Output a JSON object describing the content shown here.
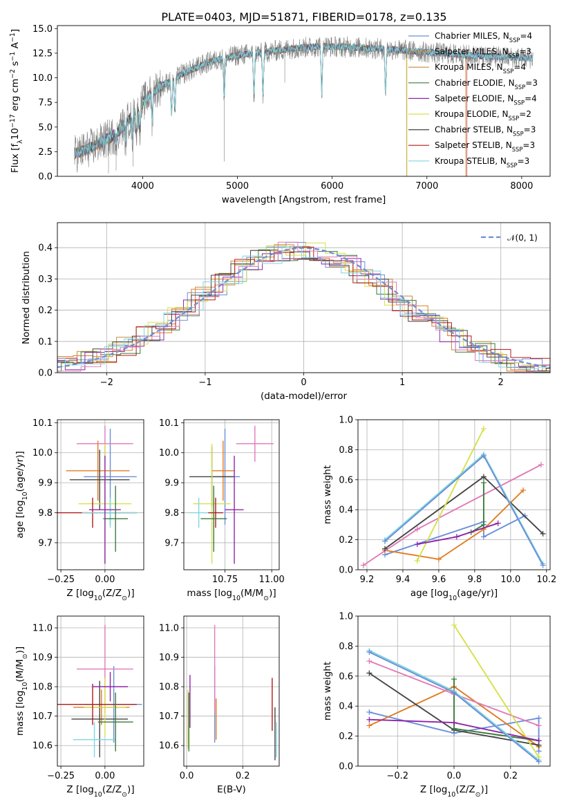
{
  "figure": {
    "title": "PLATE=0403, MJD=51871, FIBERID=0178, z=0.135"
  },
  "colors": {
    "chabrier_miles": "#6a8fd8",
    "salpeter_miles": "#e07b20",
    "kroupa_miles": "#c08a40",
    "chabrier_elodie": "#3a7a3a",
    "salpeter_elodie": "#8e24aa",
    "kroupa_elodie": "#d6e04a",
    "chabrier_stelib": "#444444",
    "salpeter_stelib": "#b01818",
    "kroupa_stelib": "#7fd6e0",
    "spectrum_data": "#808080",
    "pink": "#e07ab8",
    "normal_curve": "#6a8fd8"
  },
  "chart_data": [
    {
      "id": "spectrum",
      "type": "line",
      "title": "PLATE=0403, MJD=51871, FIBERID=0178, z=0.135",
      "xlabel": "wavelength [Angstrom, rest frame]",
      "ylabel": "Flux [f_λ 10^-17 erg cm^-2 s^-1 A^-1]",
      "xlim": [
        3100,
        8300
      ],
      "ylim": [
        0,
        15.3
      ],
      "xticks": [
        4000,
        5000,
        6000,
        7000,
        8000
      ],
      "yticks": [
        0.0,
        2.5,
        5.0,
        7.5,
        10.0,
        12.5,
        15.0
      ],
      "continuum_x": [
        3300,
        3500,
        3700,
        3900,
        4100,
        4400,
        4700,
        5000,
        5300,
        5600,
        5900,
        6200,
        6600,
        7000,
        7400,
        7800,
        8100
      ],
      "continuum_y": [
        2.3,
        3.1,
        4.2,
        6.2,
        8.6,
        10.3,
        11.6,
        12.3,
        12.6,
        13.0,
        13.2,
        13.1,
        12.9,
        12.6,
        12.3,
        12.1,
        12.0
      ],
      "legend_position": "upper right",
      "legend": [
        {
          "label": "Chabrier MILES, N_SSP=4",
          "color": "#6a8fd8"
        },
        {
          "label": "Salpeter MILES, N_SSP=3",
          "color": "#e07b20"
        },
        {
          "label": "Kroupa MILES, N_SSP=4",
          "color": "#c08a40"
        },
        {
          "label": "Chabrier ELODIE, N_SSP=3",
          "color": "#3a7a3a"
        },
        {
          "label": "Salpeter ELODIE, N_SSP=4",
          "color": "#8e24aa"
        },
        {
          "label": "Kroupa ELODIE, N_SSP=2",
          "color": "#d6e04a"
        },
        {
          "label": "Chabrier STELIB, N_SSP=3",
          "color": "#444444"
        },
        {
          "label": "Salpeter STELIB, N_SSP=3",
          "color": "#b01818"
        },
        {
          "label": "Kroupa STELIB, N_SSP=3",
          "color": "#7fd6e0"
        }
      ]
    },
    {
      "id": "residuals",
      "type": "histogram",
      "xlabel": "(data-model)/error",
      "ylabel": "Normed distribution",
      "xlim": [
        -2.5,
        2.5
      ],
      "ylim": [
        0,
        0.48
      ],
      "xticks": [
        -2,
        -1,
        0,
        1,
        2
      ],
      "yticks": [
        0.0,
        0.1,
        0.2,
        0.3,
        0.4
      ],
      "legend_label": "N(0,1)",
      "legend_position": "upper right",
      "curve": "standard normal"
    },
    {
      "id": "age_vs_Z",
      "type": "errorbar",
      "xlabel": "Z [log10(Z/Z☉)]",
      "ylabel": "age [log10(age/yr)]",
      "xlim": [
        -0.27,
        0.22
      ],
      "ylim": [
        9.61,
        10.11
      ],
      "xticks": [
        -0.25,
        0.0
      ],
      "yticks": [
        9.7,
        9.8,
        9.9,
        10.0,
        10.1
      ],
      "points": [
        {
          "x": 0.03,
          "y": 9.92,
          "xerr": 0.15,
          "yerr": 0.16,
          "color": "#6a8fd8"
        },
        {
          "x": -0.04,
          "y": 9.94,
          "xerr": 0.18,
          "yerr": 0.1,
          "color": "#e07b20"
        },
        {
          "x": 0.0,
          "y": 10.03,
          "xerr": 0.16,
          "yerr": 0.06,
          "color": "#e07ab8"
        },
        {
          "x": -0.03,
          "y": 9.91,
          "xerr": 0.17,
          "yerr": 0.1,
          "color": "#444444"
        },
        {
          "x": 0.0,
          "y": 9.83,
          "xerr": 0.15,
          "yerr": 0.2,
          "color": "#d6e04a"
        },
        {
          "x": -0.07,
          "y": 9.8,
          "xerr": 0.25,
          "yerr": 0.05,
          "color": "#b01818"
        },
        {
          "x": 0.03,
          "y": 9.8,
          "xerr": 0.16,
          "yerr": 0.05,
          "color": "#7fd6e0"
        },
        {
          "x": 0.0,
          "y": 9.81,
          "xerr": 0.09,
          "yerr": 0.18,
          "color": "#8e24aa"
        },
        {
          "x": 0.06,
          "y": 9.78,
          "xerr": 0.07,
          "yerr": 0.11,
          "color": "#3a7a3a"
        }
      ]
    },
    {
      "id": "age_vs_mass",
      "type": "errorbar",
      "xlabel": "mass [log10(M/M☉)]",
      "ylabel": "",
      "xlim": [
        10.53,
        11.04
      ],
      "ylim": [
        9.61,
        10.11
      ],
      "xticks": [
        10.75,
        11.0
      ],
      "yticks": [
        9.7,
        9.8,
        9.9,
        10.0,
        10.1
      ],
      "points": [
        {
          "x": 10.75,
          "y": 9.92,
          "xerr": 0.08,
          "yerr": 0.16,
          "color": "#6a8fd8"
        },
        {
          "x": 10.74,
          "y": 9.94,
          "xerr": 0.06,
          "yerr": 0.1,
          "color": "#e07b20"
        },
        {
          "x": 10.91,
          "y": 10.03,
          "xerr": 0.1,
          "yerr": 0.06,
          "color": "#e07ab8"
        },
        {
          "x": 10.68,
          "y": 9.92,
          "xerr": 0.12,
          "yerr": 0.1,
          "color": "#444444"
        },
        {
          "x": 10.68,
          "y": 9.83,
          "xerr": 0.1,
          "yerr": 0.2,
          "color": "#d6e04a"
        },
        {
          "x": 10.7,
          "y": 9.8,
          "xerr": 0.04,
          "yerr": 0.05,
          "color": "#b01818"
        },
        {
          "x": 10.61,
          "y": 9.8,
          "xerr": 0.05,
          "yerr": 0.05,
          "color": "#7fd6e0"
        },
        {
          "x": 10.8,
          "y": 9.81,
          "xerr": 0.05,
          "yerr": 0.18,
          "color": "#8e24aa"
        },
        {
          "x": 10.69,
          "y": 9.78,
          "xerr": 0.07,
          "yerr": 0.11,
          "color": "#3a7a3a"
        }
      ]
    },
    {
      "id": "weights_vs_age",
      "type": "line",
      "xlabel": "age [log10(age/yr)]",
      "ylabel": "mass weight",
      "xlim": [
        9.15,
        10.22
      ],
      "ylim": [
        0,
        1.0
      ],
      "xticks": [
        9.2,
        9.4,
        9.6,
        9.8,
        10.0,
        10.2
      ],
      "yticks": [
        0.0,
        0.2,
        0.4,
        0.6,
        0.8,
        1.0
      ],
      "grid": true,
      "series": [
        {
          "color": "#6a8fd8",
          "x": [
            9.3,
            9.85,
            9.85,
            10.08
          ],
          "y": [
            0.1,
            0.32,
            0.22,
            0.36
          ]
        },
        {
          "color": "#e07b20",
          "x": [
            9.3,
            9.6,
            9.85,
            10.07
          ],
          "y": [
            0.13,
            0.07,
            0.27,
            0.53
          ]
        },
        {
          "color": "#e07ab8",
          "x": [
            9.18,
            9.48,
            10.17
          ],
          "y": [
            0.03,
            0.27,
            0.7
          ]
        },
        {
          "color": "#444444",
          "x": [
            9.3,
            9.85,
            10.18
          ],
          "y": [
            0.14,
            0.62,
            0.24
          ]
        },
        {
          "color": "#d6e04a",
          "x": [
            9.48,
            9.85
          ],
          "y": [
            0.06,
            0.94
          ]
        },
        {
          "color": "#3a7a3a",
          "x": [
            9.78,
            9.85,
            9.85
          ],
          "y": [
            0.25,
            0.3,
            0.58
          ]
        },
        {
          "color": "#8e24aa",
          "x": [
            9.48,
            9.7,
            9.93
          ],
          "y": [
            0.17,
            0.22,
            0.31
          ]
        },
        {
          "color": "#7fd6e0",
          "x": [
            9.3,
            9.85,
            10.18
          ],
          "y": [
            0.2,
            0.77,
            0.04
          ]
        },
        {
          "color": "#6a8fd8",
          "x": [
            9.3,
            9.85,
            10.18
          ],
          "y": [
            0.19,
            0.76,
            0.03
          ]
        }
      ]
    },
    {
      "id": "mass_vs_Z",
      "type": "errorbar",
      "xlabel": "Z [log10(Z/Z☉)]",
      "ylabel": "mass [log10(M/M☉)]",
      "xlim": [
        -0.27,
        0.22
      ],
      "ylim": [
        10.53,
        11.04
      ],
      "xticks": [
        -0.25,
        0.0
      ],
      "yticks": [
        10.6,
        10.7,
        10.8,
        10.9,
        11.0
      ],
      "points": [
        {
          "x": 0.05,
          "y": 10.74,
          "xerr": 0.16,
          "yerr": 0.13,
          "color": "#6a8fd8"
        },
        {
          "x": -0.02,
          "y": 10.73,
          "xerr": 0.16,
          "yerr": 0.06,
          "color": "#e07b20"
        },
        {
          "x": 0.0,
          "y": 10.86,
          "xerr": 0.16,
          "yerr": 0.15,
          "color": "#e07ab8"
        },
        {
          "x": -0.03,
          "y": 10.69,
          "xerr": 0.16,
          "yerr": 0.13,
          "color": "#444444"
        },
        {
          "x": 0.0,
          "y": 10.73,
          "xerr": 0.12,
          "yerr": 0.1,
          "color": "#d6e04a"
        },
        {
          "x": -0.07,
          "y": 10.74,
          "xerr": 0.25,
          "yerr": 0.07,
          "color": "#b01818"
        },
        {
          "x": -0.06,
          "y": 10.62,
          "xerr": 0.12,
          "yerr": 0.06,
          "color": "#7fd6e0"
        },
        {
          "x": 0.03,
          "y": 10.8,
          "xerr": 0.1,
          "yerr": 0.05,
          "color": "#8e24aa"
        },
        {
          "x": 0.06,
          "y": 10.68,
          "xerr": 0.1,
          "yerr": 0.1,
          "color": "#3a7a3a"
        }
      ]
    },
    {
      "id": "mass_vs_ebv",
      "type": "errorbar",
      "xlabel": "E(B-V)",
      "ylabel": "",
      "xlim": [
        -0.01,
        0.33
      ],
      "ylim": [
        10.53,
        11.04
      ],
      "xticks": [
        0.0,
        0.2
      ],
      "yticks": [
        10.6,
        10.7,
        10.8,
        10.9,
        11.0
      ],
      "points": [
        {
          "x": 0.1,
          "y": 10.74,
          "xerr": 0.0,
          "yerr": 0.13,
          "color": "#6a8fd8"
        },
        {
          "x": 0.105,
          "y": 10.69,
          "xerr": 0.0,
          "yerr": 0.07,
          "color": "#e07b20"
        },
        {
          "x": 0.1,
          "y": 10.86,
          "xerr": 0.0,
          "yerr": 0.15,
          "color": "#e07ab8"
        },
        {
          "x": 0.315,
          "y": 10.64,
          "xerr": 0.0,
          "yerr": 0.09,
          "color": "#444444"
        },
        {
          "x": 0.005,
          "y": 10.69,
          "xerr": 0.0,
          "yerr": 0.1,
          "color": "#d6e04a"
        },
        {
          "x": 0.305,
          "y": 10.74,
          "xerr": 0.0,
          "yerr": 0.09,
          "color": "#b01818"
        },
        {
          "x": 0.32,
          "y": 10.62,
          "xerr": 0.0,
          "yerr": 0.06,
          "color": "#7fd6e0"
        },
        {
          "x": 0.012,
          "y": 10.75,
          "xerr": 0.0,
          "yerr": 0.09,
          "color": "#8e24aa"
        },
        {
          "x": 0.008,
          "y": 10.68,
          "xerr": 0.0,
          "yerr": 0.1,
          "color": "#3a7a3a"
        }
      ]
    },
    {
      "id": "weights_vs_Z",
      "type": "line",
      "xlabel": "Z [log10(Z/Z☉)]",
      "ylabel": "mass weight",
      "xlim": [
        -0.34,
        0.34
      ],
      "ylim": [
        0,
        1.0
      ],
      "xticks": [
        -0.2,
        0.0,
        0.2
      ],
      "yticks": [
        0.0,
        0.2,
        0.4,
        0.6,
        0.8,
        1.0
      ],
      "grid": true,
      "series": [
        {
          "color": "#6a8fd8",
          "x": [
            -0.3,
            0.0,
            0.3,
            0.3
          ],
          "y": [
            0.36,
            0.22,
            0.32,
            0.1
          ]
        },
        {
          "color": "#e07b20",
          "x": [
            -0.3,
            0.0,
            0.3
          ],
          "y": [
            0.27,
            0.53,
            0.13
          ]
        },
        {
          "color": "#e07ab8",
          "x": [
            -0.3,
            0.0,
            0.3
          ],
          "y": [
            0.7,
            0.48,
            0.27
          ]
        },
        {
          "color": "#444444",
          "x": [
            -0.3,
            0.0,
            0.3
          ],
          "y": [
            0.62,
            0.24,
            0.14
          ]
        },
        {
          "color": "#d6e04a",
          "x": [
            0.0,
            0.3
          ],
          "y": [
            0.94,
            0.06
          ]
        },
        {
          "color": "#3a7a3a",
          "x": [
            0.0,
            0.0,
            0.3
          ],
          "y": [
            0.58,
            0.25,
            0.17
          ]
        },
        {
          "color": "#8e24aa",
          "x": [
            -0.3,
            0.0,
            0.3
          ],
          "y": [
            0.31,
            0.29,
            0.17
          ]
        },
        {
          "color": "#7fd6e0",
          "x": [
            -0.3,
            0.0,
            0.3
          ],
          "y": [
            0.77,
            0.5,
            0.04
          ]
        },
        {
          "color": "#6a8fd8",
          "x": [
            -0.3,
            0.0,
            0.3
          ],
          "y": [
            0.76,
            0.49,
            0.03
          ]
        }
      ]
    }
  ]
}
